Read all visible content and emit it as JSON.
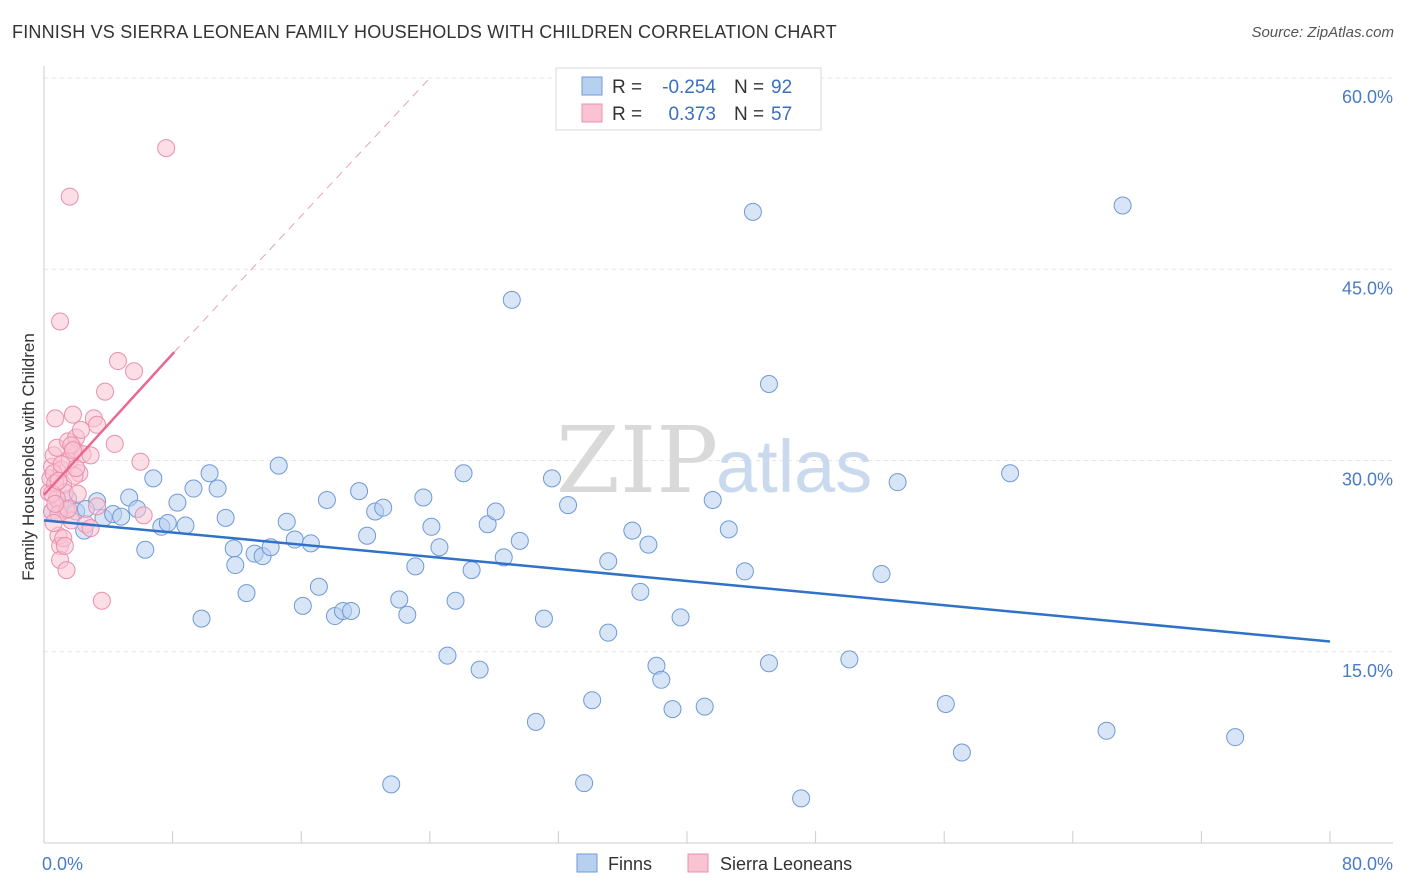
{
  "title": "FINNISH VS SIERRA LEONEAN FAMILY HOUSEHOLDS WITH CHILDREN CORRELATION CHART",
  "source": "Source: ZipAtlas.com",
  "watermark": {
    "part1": "ZIP",
    "part2": "atlas"
  },
  "colors": {
    "finns_fill": "#b8d0f0",
    "finns_stroke": "#6f9ad6",
    "finns_line": "#2f72c8",
    "sierra_fill": "#f9c3d4",
    "sierra_stroke": "#e890ad",
    "sierra_line": "#e8688f",
    "grid": "#e6e6e6",
    "axis_text": "#4a7cc4"
  },
  "legend": {
    "row1": {
      "r_label": "R =",
      "r_value": "-0.254",
      "n_label": "N =",
      "n_value": "92"
    },
    "row2": {
      "r_label": "R =",
      "r_value": "0.373",
      "n_label": "N =",
      "n_value": "57"
    }
  },
  "bottom_legend": {
    "finns": "Finns",
    "sierra": "Sierra Leoneans"
  },
  "chart_data": {
    "type": "scatter",
    "title": "FINNISH VS SIERRA LEONEAN FAMILY HOUSEHOLDS WITH CHILDREN CORRELATION CHART",
    "xlabel": "",
    "ylabel": "Family Households with Children",
    "xlim": [
      0,
      80
    ],
    "ylim": [
      0,
      60
    ],
    "x_tick_labels": {
      "min": "0.0%",
      "max": "80.0%"
    },
    "y_ticks": [
      {
        "value": 15,
        "label": "15.0%"
      },
      {
        "value": 30,
        "label": "30.0%"
      },
      {
        "value": 45,
        "label": "45.0%"
      },
      {
        "value": 60,
        "label": "60.0%"
      }
    ],
    "series": [
      {
        "name": "Finns",
        "R": -0.254,
        "N": 92,
        "trend": {
          "x0": 0,
          "y0": 25.3,
          "x1": 80,
          "y1": 15.8
        },
        "points": [
          [
            0.5,
            26.0
          ],
          [
            1.0,
            26.5
          ],
          [
            1.5,
            27.0
          ],
          [
            2.0,
            26.0
          ],
          [
            2.5,
            24.5
          ],
          [
            3.3,
            26.8
          ],
          [
            3.7,
            25.5
          ],
          [
            4.3,
            25.8
          ],
          [
            4.8,
            25.6
          ],
          [
            5.3,
            27.1
          ],
          [
            5.8,
            26.2
          ],
          [
            6.3,
            23.0
          ],
          [
            6.8,
            28.6
          ],
          [
            7.3,
            24.8
          ],
          [
            7.7,
            25.1
          ],
          [
            8.3,
            26.7
          ],
          [
            8.8,
            24.9
          ],
          [
            9.3,
            27.8
          ],
          [
            9.8,
            17.6
          ],
          [
            10.3,
            29.0
          ],
          [
            10.8,
            27.8
          ],
          [
            11.3,
            25.5
          ],
          [
            11.8,
            23.1
          ],
          [
            11.9,
            21.8
          ],
          [
            12.6,
            19.6
          ],
          [
            13.1,
            22.7
          ],
          [
            13.6,
            22.5
          ],
          [
            14.1,
            23.2
          ],
          [
            14.6,
            29.6
          ],
          [
            15.1,
            25.2
          ],
          [
            15.6,
            23.8
          ],
          [
            16.1,
            18.6
          ],
          [
            16.6,
            23.5
          ],
          [
            17.1,
            20.1
          ],
          [
            17.6,
            26.9
          ],
          [
            18.1,
            17.8
          ],
          [
            18.6,
            18.2
          ],
          [
            19.1,
            18.2
          ],
          [
            19.6,
            27.6
          ],
          [
            20.1,
            24.1
          ],
          [
            20.6,
            26.0
          ],
          [
            21.1,
            26.3
          ],
          [
            21.6,
            4.6
          ],
          [
            22.1,
            19.1
          ],
          [
            22.6,
            17.9
          ],
          [
            23.1,
            21.7
          ],
          [
            23.6,
            27.1
          ],
          [
            24.1,
            24.8
          ],
          [
            24.6,
            23.2
          ],
          [
            25.1,
            14.7
          ],
          [
            25.6,
            19.0
          ],
          [
            26.1,
            29.0
          ],
          [
            26.6,
            21.4
          ],
          [
            27.1,
            13.6
          ],
          [
            27.6,
            25.0
          ],
          [
            28.1,
            26.0
          ],
          [
            28.6,
            22.4
          ],
          [
            29.1,
            42.6
          ],
          [
            29.6,
            23.7
          ],
          [
            30.6,
            9.5
          ],
          [
            31.1,
            17.6
          ],
          [
            31.6,
            28.6
          ],
          [
            32.6,
            26.5
          ],
          [
            33.6,
            4.7
          ],
          [
            34.1,
            11.2
          ],
          [
            35.1,
            22.1
          ],
          [
            35.1,
            16.5
          ],
          [
            36.6,
            24.5
          ],
          [
            37.6,
            23.4
          ],
          [
            37.1,
            19.7
          ],
          [
            38.1,
            13.9
          ],
          [
            38.4,
            12.8
          ],
          [
            39.1,
            10.5
          ],
          [
            39.6,
            17.7
          ],
          [
            41.1,
            10.7
          ],
          [
            41.6,
            26.9
          ],
          [
            42.6,
            24.6
          ],
          [
            43.6,
            21.3
          ],
          [
            44.1,
            49.5
          ],
          [
            45.1,
            14.1
          ],
          [
            45.1,
            36.0
          ],
          [
            47.1,
            3.5
          ],
          [
            50.1,
            14.4
          ],
          [
            52.1,
            21.1
          ],
          [
            53.1,
            28.3
          ],
          [
            56.1,
            10.9
          ],
          [
            57.1,
            7.1
          ],
          [
            60.1,
            29.0
          ],
          [
            66.1,
            8.8
          ],
          [
            67.1,
            50.0
          ],
          [
            74.1,
            8.3
          ],
          [
            2.6,
            26.2
          ]
        ]
      },
      {
        "name": "Sierra Leoneans",
        "R": 0.373,
        "N": 57,
        "trend": {
          "x0": 0,
          "y0": 27.3,
          "x1": 8.1,
          "y1": 38.5,
          "dash_x1": 24,
          "dash_y1": 60
        },
        "points": [
          [
            0.3,
            27.5
          ],
          [
            0.4,
            28.6
          ],
          [
            0.5,
            29.5
          ],
          [
            0.5,
            26.0
          ],
          [
            0.6,
            30.4
          ],
          [
            0.7,
            33.3
          ],
          [
            0.8,
            31.0
          ],
          [
            0.9,
            24.1
          ],
          [
            1.0,
            23.3
          ],
          [
            1.0,
            22.2
          ],
          [
            1.1,
            29.3
          ],
          [
            1.2,
            28.1
          ],
          [
            1.3,
            27.5
          ],
          [
            1.4,
            26.1
          ],
          [
            1.5,
            31.5
          ],
          [
            1.6,
            30.0
          ],
          [
            1.7,
            25.3
          ],
          [
            1.8,
            33.6
          ],
          [
            1.9,
            30.9
          ],
          [
            2.0,
            31.8
          ],
          [
            2.1,
            27.4
          ],
          [
            2.2,
            29.0
          ],
          [
            2.3,
            32.4
          ],
          [
            2.4,
            30.5
          ],
          [
            0.6,
            29.0
          ],
          [
            0.7,
            28.2
          ],
          [
            0.8,
            27.0
          ],
          [
            0.9,
            25.8
          ],
          [
            1.0,
            40.9
          ],
          [
            1.1,
            29.7
          ],
          [
            1.2,
            23.9
          ],
          [
            1.3,
            23.3
          ],
          [
            1.4,
            21.4
          ],
          [
            1.5,
            26.2
          ],
          [
            1.6,
            50.7
          ],
          [
            1.7,
            31.2
          ],
          [
            1.8,
            30.8
          ],
          [
            1.9,
            28.8
          ],
          [
            2.0,
            29.4
          ],
          [
            2.6,
            25.0
          ],
          [
            2.9,
            30.4
          ],
          [
            3.1,
            33.3
          ],
          [
            3.3,
            32.8
          ],
          [
            3.6,
            19.0
          ],
          [
            3.8,
            35.4
          ],
          [
            4.4,
            31.3
          ],
          [
            4.6,
            37.8
          ],
          [
            5.6,
            37.0
          ],
          [
            6.0,
            29.9
          ],
          [
            6.2,
            25.7
          ],
          [
            7.6,
            54.5
          ],
          [
            0.5,
            27.4
          ],
          [
            0.6,
            25.1
          ],
          [
            0.7,
            26.6
          ],
          [
            2.9,
            24.7
          ],
          [
            3.3,
            26.4
          ],
          [
            0.9,
            28.4
          ]
        ]
      }
    ]
  }
}
